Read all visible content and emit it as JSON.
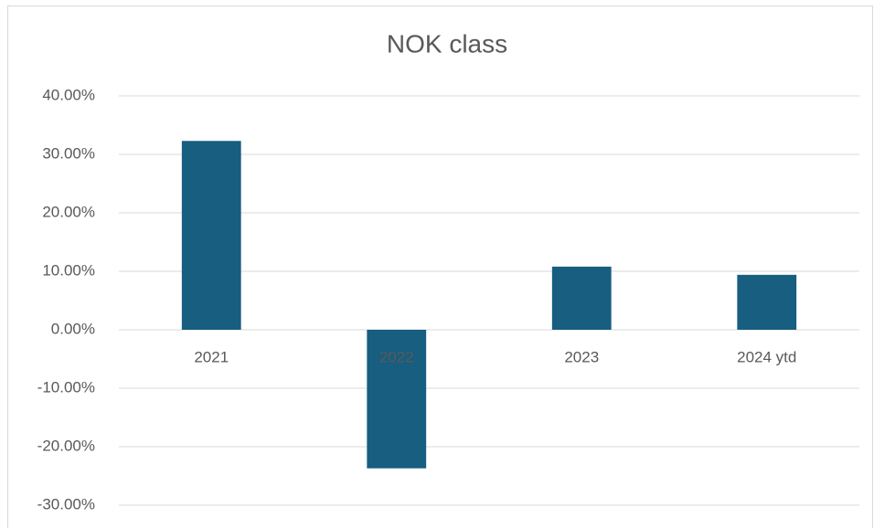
{
  "chart_data": {
    "type": "bar",
    "title": "NOK class",
    "categories": [
      "2021",
      "2022",
      "2023",
      "2024 ytd"
    ],
    "values": [
      32.3,
      -23.7,
      10.8,
      9.4
    ],
    "color": "#175e80",
    "ylim": [
      -30,
      40
    ],
    "yticks": [
      {
        "value": -30,
        "label": "-30.00%"
      },
      {
        "value": -20,
        "label": "-20.00%"
      },
      {
        "value": -10,
        "label": "-10.00%"
      },
      {
        "value": 0,
        "label": "0.00%"
      },
      {
        "value": 10,
        "label": "10.00%"
      },
      {
        "value": 20,
        "label": "20.00%"
      },
      {
        "value": 30,
        "label": "30.00%"
      },
      {
        "value": 40,
        "label": "40.00%"
      }
    ],
    "grid": true
  }
}
